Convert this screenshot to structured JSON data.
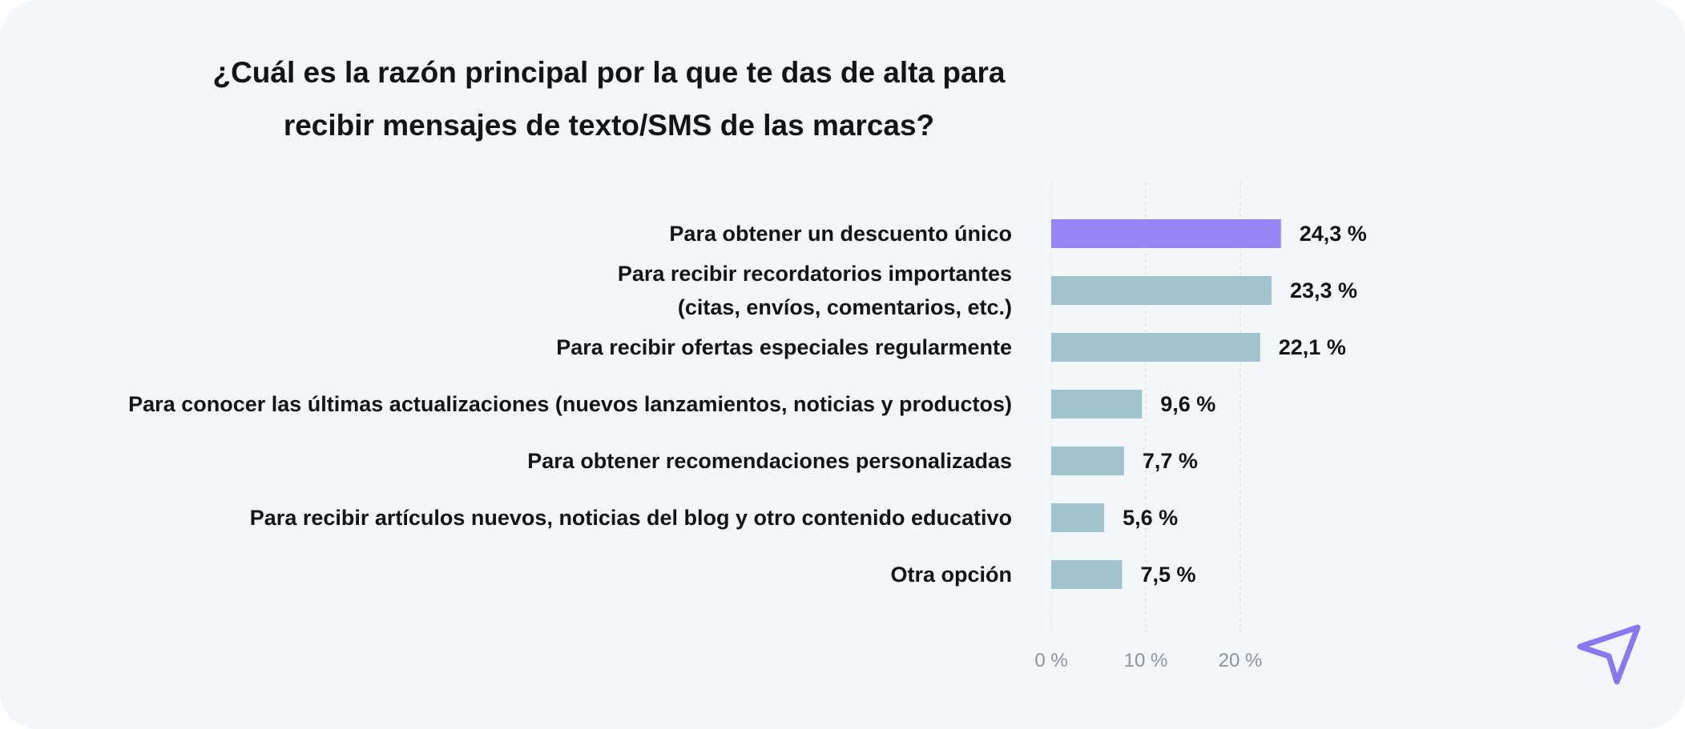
{
  "title": {
    "line1": "¿Cuál es la razón principal por la que te das de alta para",
    "line2": "recibir mensajes de texto/SMS de las marcas?"
  },
  "colors": {
    "background": "#f3f7fa",
    "highlight_bar": "#9685f2",
    "bar": "#a3c3cd",
    "text": "#111418",
    "axis_text": "#8a949c",
    "grid": "#d6dde2",
    "logo": "#8a78ee"
  },
  "logo_icon": "paper-plane-icon",
  "chart_data": {
    "type": "bar",
    "orientation": "horizontal",
    "title": "¿Cuál es la razón principal por la que te das de alta para recibir mensajes de texto/SMS de las marcas?",
    "categories": [
      [
        "Para obtener un descuento único"
      ],
      [
        "Para recibir recordatorios importantes",
        "(citas, envíos, comentarios, etc.)"
      ],
      [
        "Para recibir ofertas especiales regularmente"
      ],
      [
        "Para conocer las últimas actualizaciones (nuevos lanzamientos, noticias y productos)"
      ],
      [
        "Para obtener recomendaciones personalizadas"
      ],
      [
        "Para recibir artículos nuevos, noticias del blog y otro contenido educativo"
      ],
      [
        "Otra opción"
      ]
    ],
    "values": [
      24.3,
      23.3,
      22.1,
      9.6,
      7.7,
      5.6,
      7.5
    ],
    "value_labels": [
      "24,3 %",
      "23,3 %",
      "22,1 %",
      "9,6 %",
      "7,7 %",
      "5,6 %",
      "7,5 %"
    ],
    "highlight_index": 0,
    "x_ticks": [
      0,
      10,
      20
    ],
    "x_tick_labels": [
      "0 %",
      "10 %",
      "20 %"
    ],
    "xlim": [
      0,
      25
    ],
    "grid": true,
    "xlabel": "",
    "ylabel": ""
  }
}
